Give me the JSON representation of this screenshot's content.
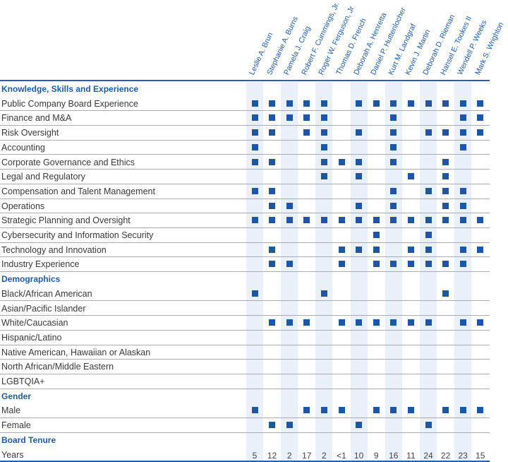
{
  "colors": {
    "accent": "#1f5aa6",
    "marker": "#1d56a6",
    "band": "#e9f0fa"
  },
  "directors": [
    "Leslie A. Brun",
    "Stephanie A. Burns",
    "Pamela J. Craig",
    "Robert F. Cummings, Jr.",
    "Roger W. Ferguson, Jr",
    "Thomas D. French",
    "Deborah A. Henretta",
    "Daniel P. Huttenlocher",
    "Kurt M. Landgraf",
    "Kevin J. Martin",
    "Deborah D. Rieman",
    "Hansel E. Tookes II",
    "Wendell P. Weeks",
    "Mark S. Wrighton"
  ],
  "rows": [
    {
      "type": "heading",
      "label": "Knowledge, Skills and Experience"
    },
    {
      "type": "item",
      "label": "Public Company Board Experience",
      "marks": [
        1,
        1,
        1,
        1,
        1,
        0,
        1,
        1,
        1,
        1,
        1,
        1,
        1,
        1
      ]
    },
    {
      "type": "item",
      "label": "Finance and M&A",
      "marks": [
        1,
        1,
        1,
        1,
        1,
        0,
        0,
        0,
        1,
        0,
        0,
        0,
        1,
        1
      ]
    },
    {
      "type": "item",
      "label": "Risk Oversight",
      "marks": [
        1,
        1,
        0,
        1,
        1,
        0,
        1,
        0,
        1,
        0,
        1,
        1,
        1,
        1
      ]
    },
    {
      "type": "item",
      "label": "Accounting",
      "marks": [
        1,
        0,
        0,
        0,
        1,
        0,
        0,
        0,
        1,
        0,
        0,
        0,
        1,
        0
      ]
    },
    {
      "type": "item",
      "label": "Corporate Governance and Ethics",
      "marks": [
        1,
        1,
        0,
        0,
        1,
        1,
        1,
        0,
        1,
        0,
        0,
        1,
        0,
        0
      ]
    },
    {
      "type": "item",
      "label": "Legal and Regulatory",
      "marks": [
        0,
        0,
        0,
        0,
        1,
        0,
        1,
        0,
        0,
        1,
        0,
        1,
        0,
        0
      ]
    },
    {
      "type": "item",
      "label": "Compensation and Talent Management",
      "marks": [
        1,
        1,
        0,
        0,
        0,
        0,
        0,
        0,
        1,
        0,
        1,
        1,
        1,
        0
      ]
    },
    {
      "type": "item",
      "label": "Operations",
      "marks": [
        0,
        1,
        1,
        0,
        0,
        0,
        1,
        0,
        1,
        0,
        0,
        1,
        1,
        0
      ]
    },
    {
      "type": "item",
      "label": "Strategic Planning and Oversight",
      "marks": [
        1,
        1,
        1,
        1,
        1,
        1,
        1,
        1,
        1,
        1,
        1,
        1,
        1,
        1
      ]
    },
    {
      "type": "item",
      "label": "Cybersecurity and Information Security",
      "marks": [
        0,
        0,
        0,
        0,
        0,
        0,
        0,
        1,
        0,
        0,
        1,
        0,
        0,
        0
      ]
    },
    {
      "type": "item",
      "label": "Technology and Innovation",
      "marks": [
        0,
        1,
        0,
        0,
        0,
        1,
        1,
        1,
        0,
        1,
        1,
        0,
        1,
        1
      ]
    },
    {
      "type": "item",
      "label": "Industry Experience",
      "marks": [
        0,
        1,
        1,
        0,
        0,
        1,
        0,
        1,
        1,
        1,
        1,
        1,
        1,
        0
      ]
    },
    {
      "type": "heading",
      "label": "Demographics"
    },
    {
      "type": "item",
      "label": "Black/African American",
      "marks": [
        1,
        0,
        0,
        0,
        1,
        0,
        0,
        0,
        0,
        0,
        0,
        1,
        0,
        0
      ]
    },
    {
      "type": "item",
      "label": "Asian/Pacific Islander",
      "marks": [
        0,
        0,
        0,
        0,
        0,
        0,
        0,
        0,
        0,
        0,
        0,
        0,
        0,
        0
      ]
    },
    {
      "type": "item",
      "label": "White/Caucasian",
      "marks": [
        0,
        1,
        1,
        1,
        0,
        1,
        1,
        1,
        1,
        1,
        1,
        0,
        1,
        1
      ]
    },
    {
      "type": "item",
      "label": "Hispanic/Latino",
      "marks": [
        0,
        0,
        0,
        0,
        0,
        0,
        0,
        0,
        0,
        0,
        0,
        0,
        0,
        0
      ]
    },
    {
      "type": "item",
      "label": "Native American, Hawaiian or Alaskan",
      "marks": [
        0,
        0,
        0,
        0,
        0,
        0,
        0,
        0,
        0,
        0,
        0,
        0,
        0,
        0
      ]
    },
    {
      "type": "item",
      "label": "North African/Middle Eastern",
      "marks": [
        0,
        0,
        0,
        0,
        0,
        0,
        0,
        0,
        0,
        0,
        0,
        0,
        0,
        0
      ]
    },
    {
      "type": "item",
      "label": "LGBTQIA+",
      "marks": [
        0,
        0,
        0,
        0,
        0,
        0,
        0,
        0,
        0,
        0,
        0,
        0,
        0,
        0
      ]
    },
    {
      "type": "heading",
      "label": "Gender"
    },
    {
      "type": "item",
      "label": "Male",
      "marks": [
        1,
        0,
        0,
        1,
        1,
        1,
        0,
        1,
        1,
        1,
        0,
        1,
        1,
        1
      ]
    },
    {
      "type": "item",
      "label": "Female",
      "marks": [
        0,
        1,
        1,
        0,
        0,
        0,
        1,
        0,
        0,
        0,
        1,
        0,
        0,
        0
      ]
    },
    {
      "type": "heading",
      "label": "Board Tenure"
    },
    {
      "type": "values",
      "label": "Years",
      "values": [
        "5",
        "12",
        "2",
        "17",
        "2",
        "<1",
        "10",
        "9",
        "16",
        "11",
        "24",
        "22",
        "23",
        "15"
      ]
    }
  ]
}
